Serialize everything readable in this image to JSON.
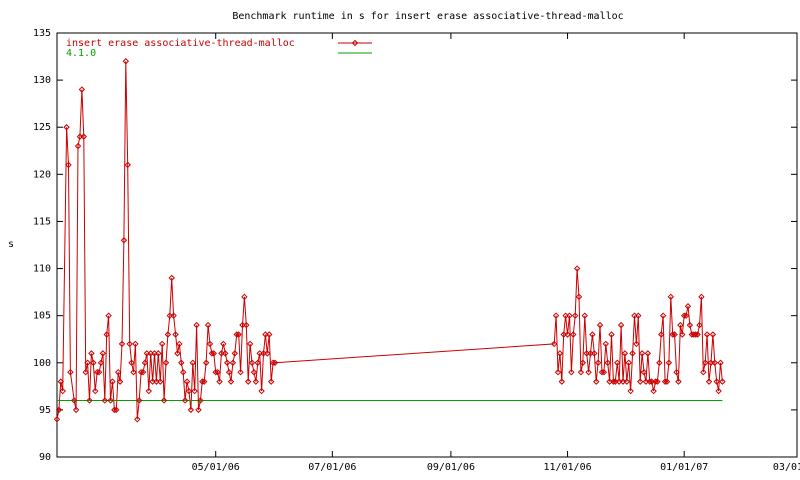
{
  "chart_data": {
    "type": "line",
    "title": "Benchmark runtime in s for insert erase associative-thread-malloc",
    "xlabel": "",
    "ylabel": "s",
    "xlim": [
      "2006-02-07",
      "2007-03-01"
    ],
    "ylim": [
      90,
      135
    ],
    "x_ticks": [
      "05/01/06",
      "07/01/06",
      "09/01/06",
      "11/01/06",
      "01/01/07",
      "03/01/07"
    ],
    "y_ticks": [
      90,
      95,
      100,
      105,
      110,
      115,
      120,
      125,
      130,
      135
    ],
    "grid": false,
    "legend_position": "top-left",
    "series": [
      {
        "name": "insert erase associative-thread-malloc",
        "color": "#cc0000",
        "marker": "diamond",
        "points": [
          [
            "2006-02-07",
            94
          ],
          [
            "2006-02-08",
            95
          ],
          [
            "2006-02-09",
            98
          ],
          [
            "2006-02-10",
            97
          ],
          [
            "2006-02-12",
            125
          ],
          [
            "2006-02-13",
            121
          ],
          [
            "2006-02-14",
            99
          ],
          [
            "2006-02-16",
            96
          ],
          [
            "2006-02-17",
            95
          ],
          [
            "2006-02-18",
            123
          ],
          [
            "2006-02-19",
            124
          ],
          [
            "2006-02-20",
            129
          ],
          [
            "2006-02-21",
            124
          ],
          [
            "2006-02-22",
            99
          ],
          [
            "2006-02-23",
            100
          ],
          [
            "2006-02-24",
            96
          ],
          [
            "2006-02-25",
            101
          ],
          [
            "2006-02-26",
            100
          ],
          [
            "2006-02-27",
            97
          ],
          [
            "2006-02-28",
            99
          ],
          [
            "2006-03-01",
            99
          ],
          [
            "2006-03-02",
            100
          ],
          [
            "2006-03-03",
            101
          ],
          [
            "2006-03-04",
            96
          ],
          [
            "2006-03-05",
            103
          ],
          [
            "2006-03-06",
            105
          ],
          [
            "2006-03-07",
            96
          ],
          [
            "2006-03-08",
            98
          ],
          [
            "2006-03-09",
            95
          ],
          [
            "2006-03-10",
            95
          ],
          [
            "2006-03-11",
            99
          ],
          [
            "2006-03-12",
            98
          ],
          [
            "2006-03-13",
            102
          ],
          [
            "2006-03-14",
            113
          ],
          [
            "2006-03-15",
            132
          ],
          [
            "2006-03-16",
            121
          ],
          [
            "2006-03-17",
            102
          ],
          [
            "2006-03-18",
            100
          ],
          [
            "2006-03-19",
            99
          ],
          [
            "2006-03-20",
            102
          ],
          [
            "2006-03-21",
            94
          ],
          [
            "2006-03-22",
            96
          ],
          [
            "2006-03-23",
            99
          ],
          [
            "2006-03-24",
            99
          ],
          [
            "2006-03-25",
            100
          ],
          [
            "2006-03-26",
            101
          ],
          [
            "2006-03-27",
            97
          ],
          [
            "2006-03-28",
            101
          ],
          [
            "2006-03-29",
            98
          ],
          [
            "2006-03-30",
            101
          ],
          [
            "2006-03-31",
            98
          ],
          [
            "2006-04-01",
            101
          ],
          [
            "2006-04-02",
            98
          ],
          [
            "2006-04-03",
            102
          ],
          [
            "2006-04-04",
            96
          ],
          [
            "2006-04-05",
            100
          ],
          [
            "2006-04-06",
            103
          ],
          [
            "2006-04-07",
            105
          ],
          [
            "2006-04-08",
            109
          ],
          [
            "2006-04-09",
            105
          ],
          [
            "2006-04-10",
            103
          ],
          [
            "2006-04-11",
            101
          ],
          [
            "2006-04-12",
            102
          ],
          [
            "2006-04-13",
            100
          ],
          [
            "2006-04-14",
            99
          ],
          [
            "2006-04-15",
            96
          ],
          [
            "2006-04-16",
            98
          ],
          [
            "2006-04-17",
            97
          ],
          [
            "2006-04-18",
            95
          ],
          [
            "2006-04-19",
            100
          ],
          [
            "2006-04-20",
            97
          ],
          [
            "2006-04-21",
            104
          ],
          [
            "2006-04-22",
            95
          ],
          [
            "2006-04-23",
            96
          ],
          [
            "2006-04-24",
            98
          ],
          [
            "2006-04-25",
            98
          ],
          [
            "2006-04-26",
            100
          ],
          [
            "2006-04-27",
            104
          ],
          [
            "2006-04-28",
            102
          ],
          [
            "2006-04-29",
            101
          ],
          [
            "2006-04-30",
            101
          ],
          [
            "2006-05-01",
            99
          ],
          [
            "2006-05-02",
            99
          ],
          [
            "2006-05-03",
            98
          ],
          [
            "2006-05-04",
            101
          ],
          [
            "2006-05-05",
            102
          ],
          [
            "2006-05-06",
            101
          ],
          [
            "2006-05-07",
            100
          ],
          [
            "2006-05-08",
            99
          ],
          [
            "2006-05-09",
            98
          ],
          [
            "2006-05-10",
            100
          ],
          [
            "2006-05-11",
            101
          ],
          [
            "2006-05-12",
            103
          ],
          [
            "2006-05-13",
            103
          ],
          [
            "2006-05-14",
            99
          ],
          [
            "2006-05-15",
            104
          ],
          [
            "2006-05-16",
            107
          ],
          [
            "2006-05-17",
            104
          ],
          [
            "2006-05-18",
            98
          ],
          [
            "2006-05-19",
            102
          ],
          [
            "2006-05-20",
            100
          ],
          [
            "2006-05-21",
            99
          ],
          [
            "2006-05-22",
            98
          ],
          [
            "2006-05-23",
            100
          ],
          [
            "2006-05-24",
            101
          ],
          [
            "2006-05-25",
            97
          ],
          [
            "2006-05-26",
            101
          ],
          [
            "2006-05-27",
            103
          ],
          [
            "2006-05-28",
            101
          ],
          [
            "2006-05-29",
            103
          ],
          [
            "2006-05-30",
            98
          ],
          [
            "2006-05-31",
            100
          ],
          [
            "2006-06-01",
            100
          ],
          [
            "2006-10-25",
            102
          ],
          [
            "2006-10-26",
            105
          ],
          [
            "2006-10-27",
            99
          ],
          [
            "2006-10-28",
            101
          ],
          [
            "2006-10-29",
            98
          ],
          [
            "2006-10-30",
            103
          ],
          [
            "2006-10-31",
            105
          ],
          [
            "2006-11-01",
            103
          ],
          [
            "2006-11-02",
            105
          ],
          [
            "2006-11-03",
            99
          ],
          [
            "2006-11-04",
            103
          ],
          [
            "2006-11-05",
            105
          ],
          [
            "2006-11-06",
            110
          ],
          [
            "2006-11-07",
            107
          ],
          [
            "2006-11-08",
            99
          ],
          [
            "2006-11-09",
            100
          ],
          [
            "2006-11-10",
            105
          ],
          [
            "2006-11-11",
            101
          ],
          [
            "2006-11-12",
            99
          ],
          [
            "2006-11-13",
            101
          ],
          [
            "2006-11-14",
            103
          ],
          [
            "2006-11-15",
            101
          ],
          [
            "2006-11-16",
            98
          ],
          [
            "2006-11-17",
            100
          ],
          [
            "2006-11-18",
            104
          ],
          [
            "2006-11-19",
            99
          ],
          [
            "2006-11-20",
            99
          ],
          [
            "2006-11-21",
            102
          ],
          [
            "2006-11-22",
            100
          ],
          [
            "2006-11-23",
            98
          ],
          [
            "2006-11-24",
            103
          ],
          [
            "2006-11-25",
            98
          ],
          [
            "2006-11-26",
            98
          ],
          [
            "2006-11-27",
            100
          ],
          [
            "2006-11-28",
            98
          ],
          [
            "2006-11-29",
            104
          ],
          [
            "2006-11-30",
            98
          ],
          [
            "2006-12-01",
            101
          ],
          [
            "2006-12-02",
            98
          ],
          [
            "2006-12-03",
            100
          ],
          [
            "2006-12-04",
            97
          ],
          [
            "2006-12-05",
            101
          ],
          [
            "2006-12-06",
            105
          ],
          [
            "2006-12-07",
            102
          ],
          [
            "2006-12-08",
            105
          ],
          [
            "2006-12-09",
            98
          ],
          [
            "2006-12-10",
            101
          ],
          [
            "2006-12-11",
            99
          ],
          [
            "2006-12-12",
            98
          ],
          [
            "2006-12-13",
            101
          ],
          [
            "2006-12-14",
            98
          ],
          [
            "2006-12-15",
            98
          ],
          [
            "2006-12-16",
            97
          ],
          [
            "2006-12-17",
            98
          ],
          [
            "2006-12-18",
            98
          ],
          [
            "2006-12-19",
            100
          ],
          [
            "2006-12-20",
            103
          ],
          [
            "2006-12-21",
            105
          ],
          [
            "2006-12-22",
            98
          ],
          [
            "2006-12-23",
            98
          ],
          [
            "2006-12-24",
            100
          ],
          [
            "2006-12-25",
            107
          ],
          [
            "2006-12-26",
            103
          ],
          [
            "2006-12-27",
            103
          ],
          [
            "2006-12-28",
            99
          ],
          [
            "2006-12-29",
            98
          ],
          [
            "2006-12-30",
            104
          ],
          [
            "2006-12-31",
            103
          ],
          [
            "2007-01-01",
            105
          ],
          [
            "2007-01-02",
            105
          ],
          [
            "2007-01-03",
            106
          ],
          [
            "2007-01-04",
            104
          ],
          [
            "2007-01-05",
            103
          ],
          [
            "2007-01-06",
            103
          ],
          [
            "2007-01-07",
            103
          ],
          [
            "2007-01-08",
            103
          ],
          [
            "2007-01-09",
            104
          ],
          [
            "2007-01-10",
            107
          ],
          [
            "2007-01-11",
            99
          ],
          [
            "2007-01-12",
            100
          ],
          [
            "2007-01-13",
            103
          ],
          [
            "2007-01-14",
            98
          ],
          [
            "2007-01-15",
            100
          ],
          [
            "2007-01-16",
            103
          ],
          [
            "2007-01-17",
            100
          ],
          [
            "2007-01-18",
            98
          ],
          [
            "2007-01-19",
            97
          ],
          [
            "2007-01-20",
            100
          ],
          [
            "2007-01-21",
            98
          ]
        ]
      },
      {
        "name": "4.1.0",
        "color": "#00a000",
        "marker": "none",
        "points": [
          [
            "2006-02-07",
            96
          ],
          [
            "2007-01-21",
            96
          ]
        ]
      }
    ]
  }
}
